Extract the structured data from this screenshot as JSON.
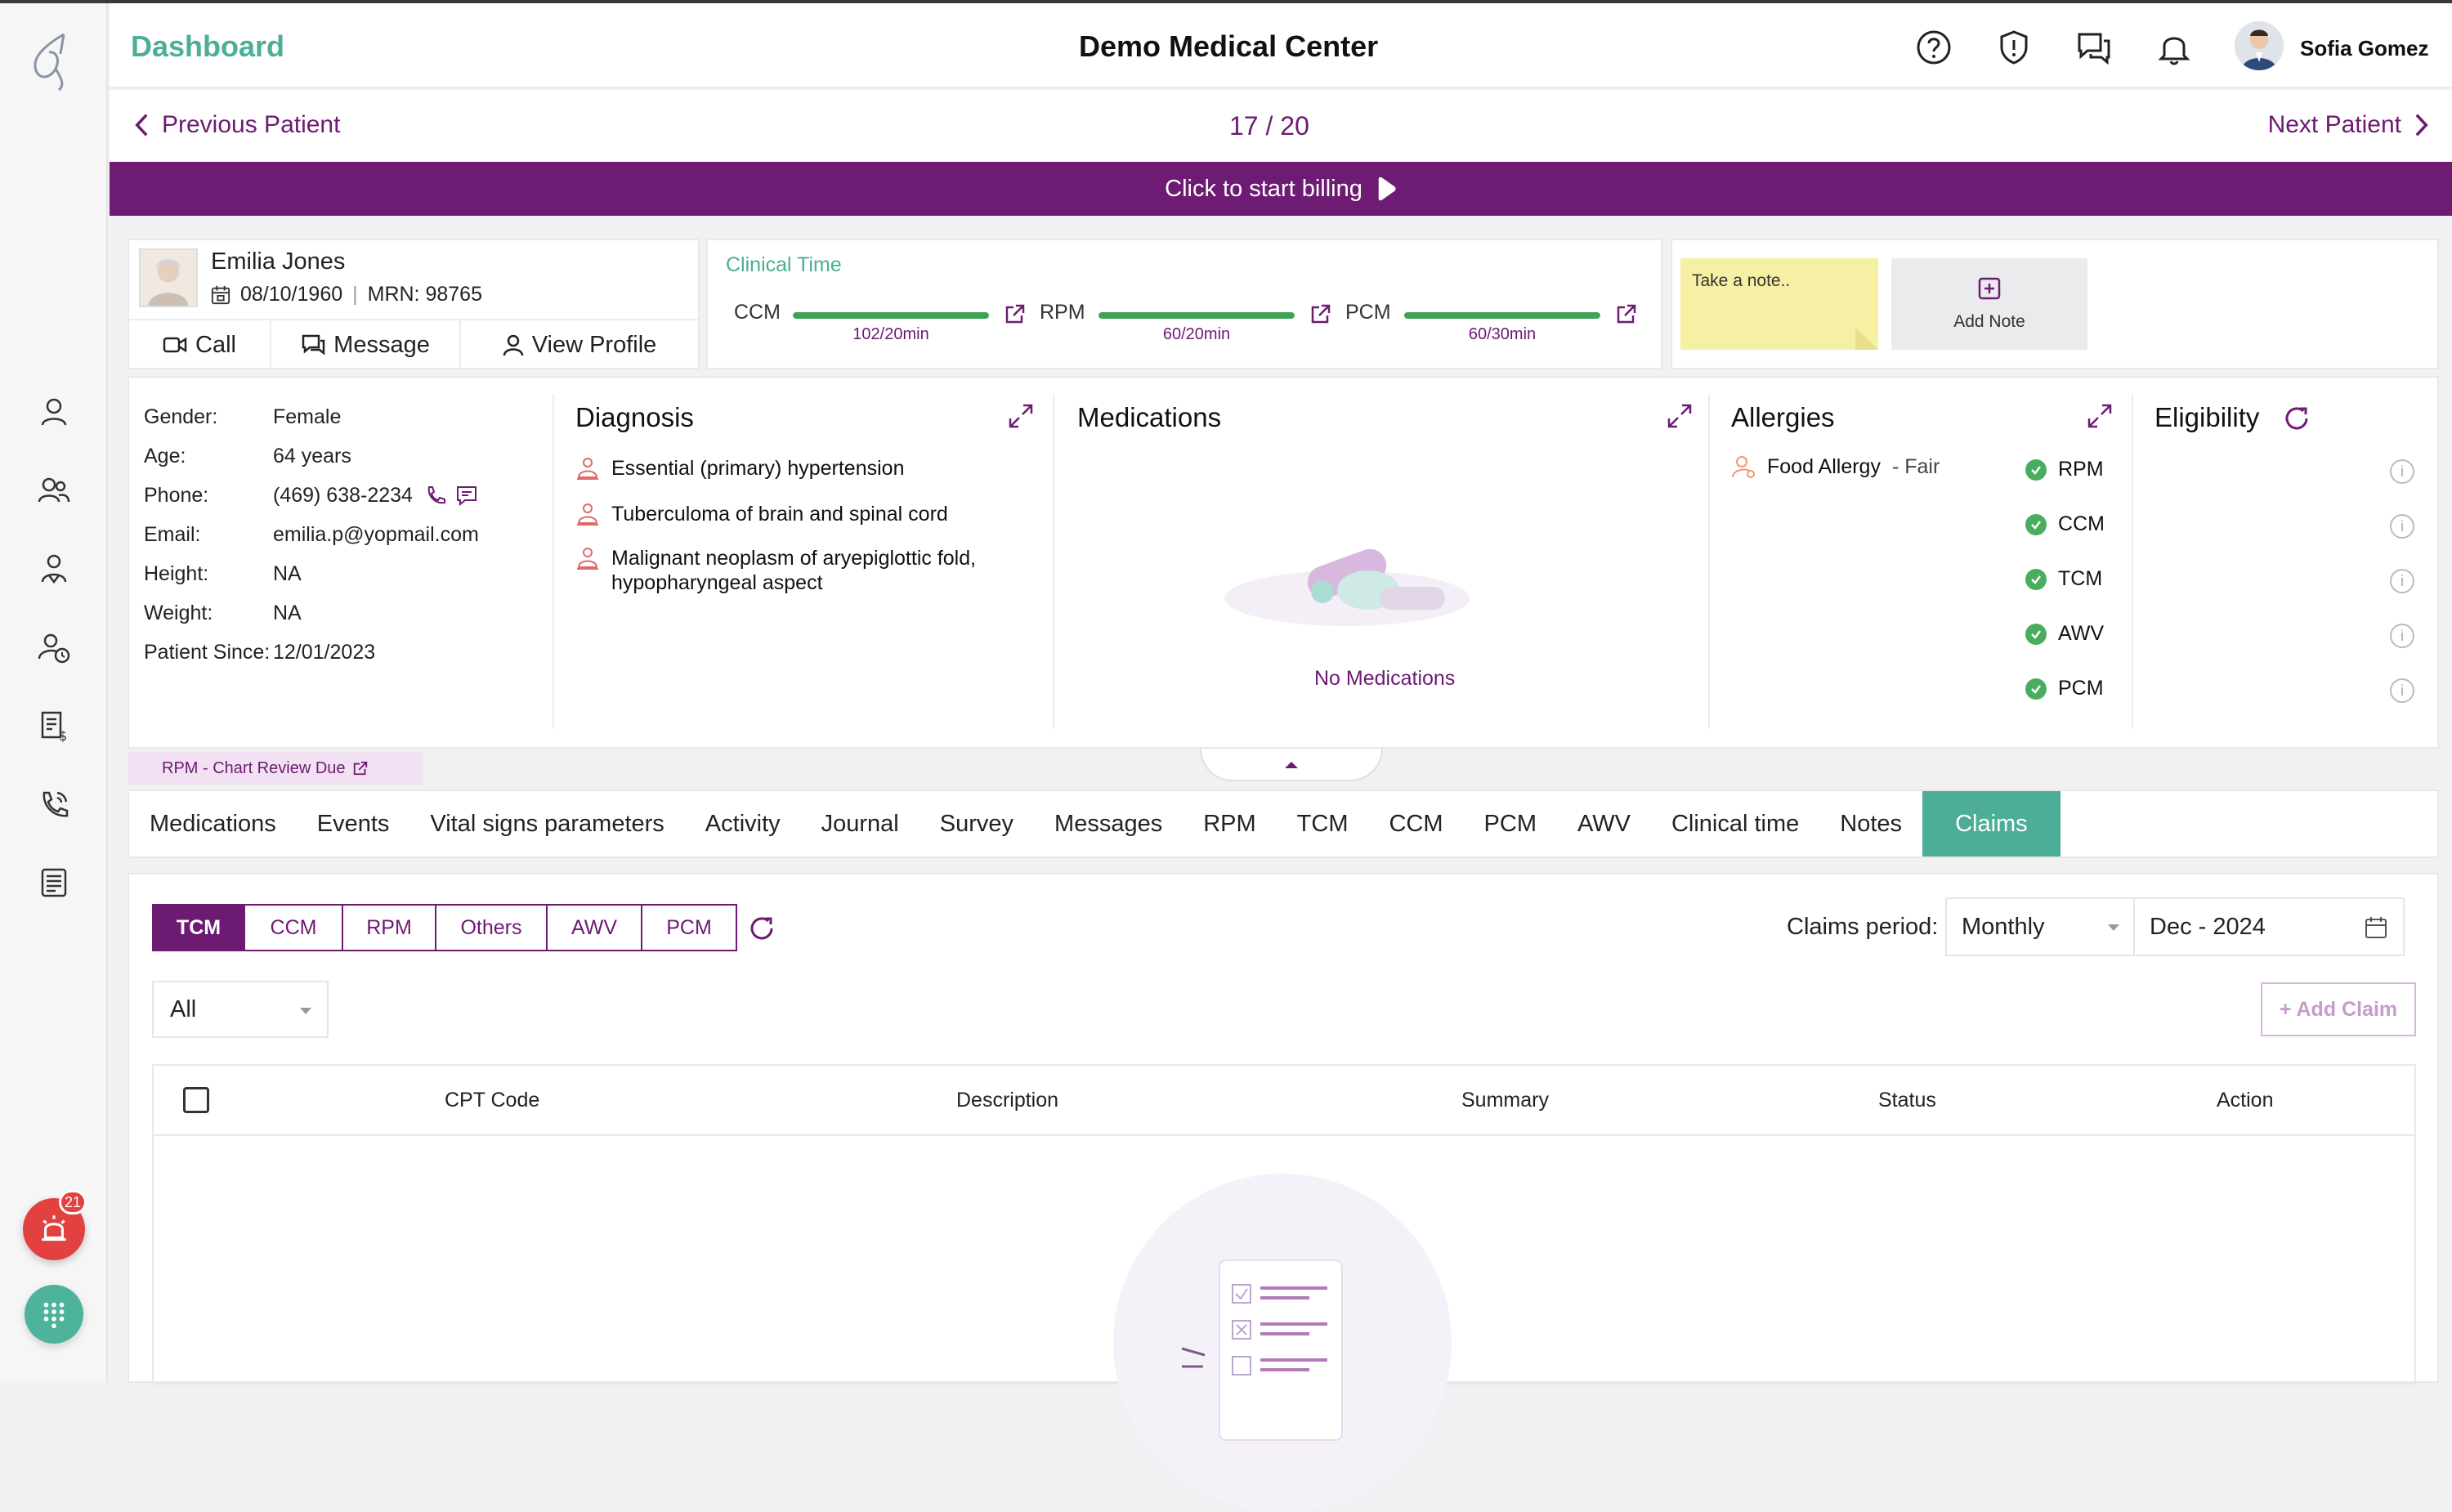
{
  "header": {
    "title": "Dashboard",
    "center_title": "Demo Medical Center",
    "user_name": "Sofia Gomez",
    "icons": [
      "help-icon",
      "shield-icon",
      "chat-icon",
      "bell-icon"
    ]
  },
  "patient_nav": {
    "prev_label": "Previous Patient",
    "count": "17 / 20",
    "next_label": "Next Patient"
  },
  "billing_label": "Click to start billing",
  "patient": {
    "name": "Emilia Jones",
    "dob": "08/10/1960",
    "mrn": "MRN: 98765",
    "actions": [
      "Call",
      "Message",
      "View Profile"
    ]
  },
  "clinical_time": {
    "title": "Clinical Time",
    "items": [
      {
        "label": "CCM",
        "value": "102/20min",
        "progress": 1.0
      },
      {
        "label": "RPM",
        "value": "60/20min",
        "progress": 1.0
      },
      {
        "label": "PCM",
        "value": "60/30min",
        "progress": 1.0
      }
    ]
  },
  "notes": {
    "note_placeholder": "Take a note..",
    "add_note_label": "Add Note"
  },
  "demographics": [
    {
      "label": "Gender:",
      "value": "Female"
    },
    {
      "label": "Age:",
      "value": "64 years"
    },
    {
      "label": "Phone:",
      "value": "(469) 638-2234"
    },
    {
      "label": "Email:",
      "value": "emilia.p@yopmail.com"
    },
    {
      "label": "Height:",
      "value": "NA"
    },
    {
      "label": "Weight:",
      "value": "NA"
    },
    {
      "label": "Patient Since:",
      "value": "12/01/2023"
    }
  ],
  "diagnosis": {
    "title": "Diagnosis",
    "items": [
      "Essential (primary) hypertension",
      "Tuberculoma of brain and spinal cord",
      "Malignant neoplasm of aryepiglottic fold,",
      "hypopharyngeal aspect"
    ]
  },
  "medications": {
    "title": "Medications",
    "empty_text": "No Medications"
  },
  "allergies": {
    "title": "Allergies",
    "items": [
      {
        "name": "Food Allergy",
        "severity": "- Fair"
      }
    ]
  },
  "eligibility": {
    "title": "Eligibility",
    "items": [
      "RPM",
      "CCM",
      "TCM",
      "AWV",
      "PCM"
    ]
  },
  "chart_review_label": "RPM - Chart Review Due",
  "tabs": [
    "Medications",
    "Events",
    "Vital signs parameters",
    "Activity",
    "Journal",
    "Survey",
    "Messages",
    "RPM",
    "TCM",
    "CCM",
    "PCM",
    "AWV",
    "Clinical time",
    "Notes",
    "Claims"
  ],
  "active_tab": "Claims",
  "claims": {
    "segments": [
      "TCM",
      "CCM",
      "RPM",
      "Others",
      "AWV",
      "PCM"
    ],
    "active_segment": "TCM",
    "period_label": "Claims period:",
    "period_value": "Monthly",
    "date_value": "Dec - 2024",
    "filter_value": "All",
    "add_claim_label": "+ Add Claim",
    "columns": [
      "CPT Code",
      "Description",
      "Summary",
      "Status",
      "Action"
    ]
  },
  "alerts_count": "21",
  "colors": {
    "brand_purple": "#6e1b73",
    "accent_teal": "#4cae96",
    "progress_green": "#3fa356",
    "alert_red": "#e34040"
  }
}
